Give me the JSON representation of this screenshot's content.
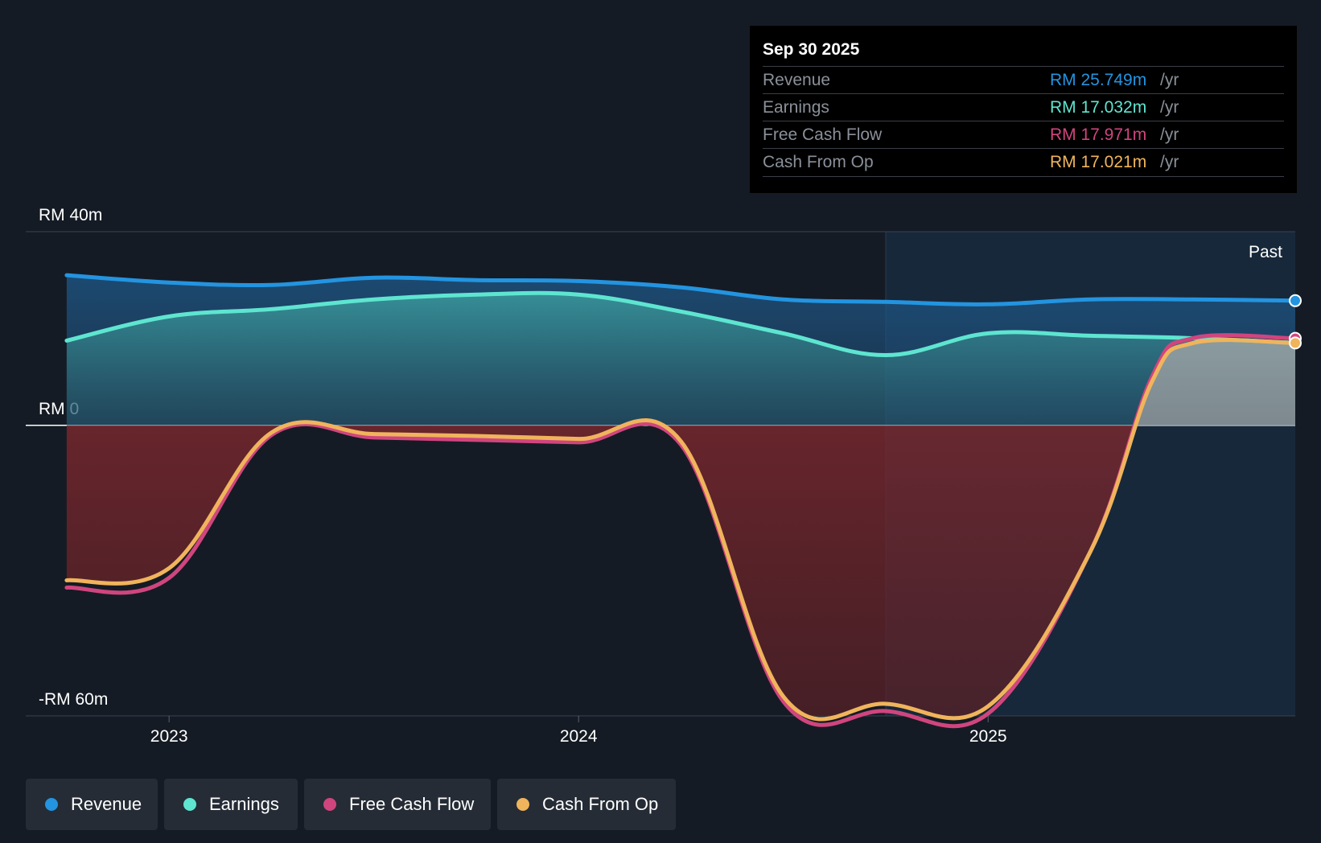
{
  "chart_data": {
    "type": "area",
    "title": "",
    "y_unit_prefix": "RM",
    "y_tick_labels": [
      "RM 40m",
      "RM 0",
      "-RM 60m"
    ],
    "y_ticks": [
      40,
      0,
      -60
    ],
    "ylim": [
      -60,
      40
    ],
    "x_tick_labels": [
      "2023",
      "2024",
      "2025"
    ],
    "x_ticks": [
      2023.0,
      2024.0,
      2025.0
    ],
    "xlim": [
      2022.65,
      2025.75
    ],
    "past_label": "Past",
    "past_start": 2024.75,
    "series": [
      {
        "name": "Revenue",
        "color": "#2394e0",
        "x": [
          2022.75,
          2023.0,
          2023.25,
          2023.5,
          2023.75,
          2024.0,
          2024.25,
          2024.5,
          2024.75,
          2025.0,
          2025.25,
          2025.5,
          2025.75
        ],
        "values": [
          31.0,
          29.5,
          29.0,
          30.5,
          30.0,
          29.8,
          28.5,
          26.0,
          25.5,
          25.0,
          26.0,
          26.0,
          25.749
        ]
      },
      {
        "name": "Earnings",
        "color": "#5ee5d0",
        "x": [
          2022.75,
          2023.0,
          2023.25,
          2023.5,
          2023.75,
          2024.0,
          2024.25,
          2024.5,
          2024.75,
          2025.0,
          2025.25,
          2025.5,
          2025.75
        ],
        "values": [
          17.5,
          22.5,
          24.0,
          26.0,
          27.0,
          27.0,
          23.5,
          19.0,
          14.5,
          19.0,
          18.5,
          18.0,
          17.032
        ]
      },
      {
        "name": "Free Cash Flow",
        "color": "#d0457e",
        "x": [
          2022.75,
          2023.0,
          2023.25,
          2023.5,
          2023.75,
          2024.0,
          2024.25,
          2024.5,
          2024.75,
          2025.0,
          2025.25,
          2025.4,
          2025.5,
          2025.75
        ],
        "values": [
          -33.5,
          -31.5,
          -2.0,
          -2.5,
          -3.0,
          -3.5,
          -4.0,
          -57.0,
          -59.0,
          -59.5,
          -26.0,
          10.0,
          18.0,
          17.971
        ]
      },
      {
        "name": "Cash From Op",
        "color": "#f0b45c",
        "x": [
          2022.75,
          2023.0,
          2023.25,
          2023.5,
          2023.75,
          2024.0,
          2024.25,
          2024.5,
          2024.75,
          2025.0,
          2025.25,
          2025.4,
          2025.5,
          2025.75
        ],
        "values": [
          -32.0,
          -29.5,
          -1.5,
          -1.8,
          -2.2,
          -2.8,
          -3.3,
          -56.0,
          -57.5,
          -58.0,
          -26.0,
          9.0,
          17.0,
          17.021
        ]
      }
    ],
    "tooltip": {
      "date": "Sep 30 2025",
      "rows": [
        {
          "label": "Revenue",
          "value": "RM 25.749m",
          "unit": "/yr",
          "color": "#2394e0"
        },
        {
          "label": "Earnings",
          "value": "RM 17.032m",
          "unit": "/yr",
          "color": "#5ee5d0"
        },
        {
          "label": "Free Cash Flow",
          "value": "RM 17.971m",
          "unit": "/yr",
          "color": "#d0457e"
        },
        {
          "label": "Cash From Op",
          "value": "RM 17.021m",
          "unit": "/yr",
          "color": "#f0b45c"
        }
      ]
    }
  },
  "legend": [
    {
      "label": "Revenue",
      "color": "#2394e0"
    },
    {
      "label": "Earnings",
      "color": "#5ee5d0"
    },
    {
      "label": "Free Cash Flow",
      "color": "#d0457e"
    },
    {
      "label": "Cash From Op",
      "color": "#f0b45c"
    }
  ]
}
